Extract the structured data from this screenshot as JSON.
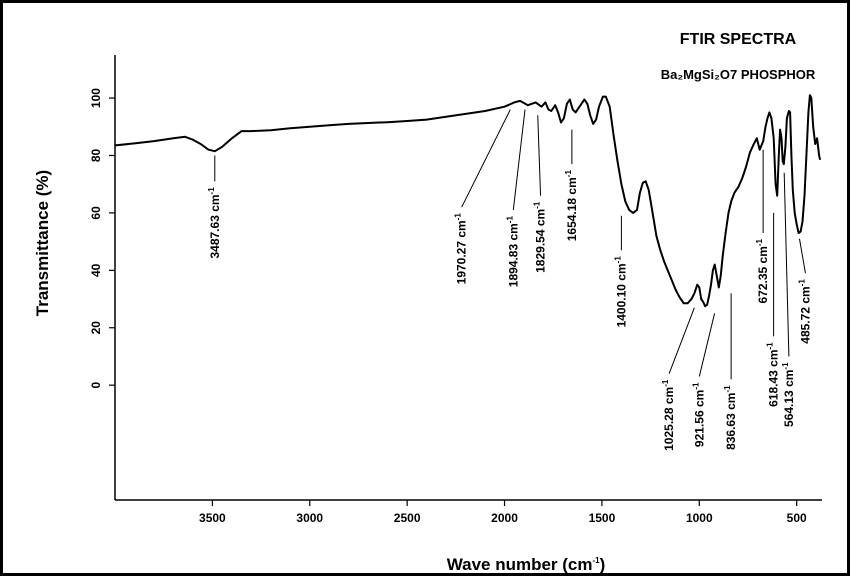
{
  "chart_data": {
    "type": "line",
    "title": "FTIR SPECTRA",
    "subtitle": "Ba₂MgSi₂O7 PHOSPHOR",
    "xlabel": "Wave number (cm",
    "xlabel_sup": "-1",
    "xlabel_end": ")",
    "ylabel": "Transmittance (%)",
    "xlim": [
      4000,
      370
    ],
    "ylim": [
      -40,
      115
    ],
    "x_ticks": [
      {
        "value": 3500,
        "label": "3500"
      },
      {
        "value": 3000,
        "label": "3000"
      },
      {
        "value": 2500,
        "label": "2500"
      },
      {
        "value": 2000,
        "label": "2000"
      },
      {
        "value": 1500,
        "label": "1500"
      },
      {
        "value": 1000,
        "label": "1000"
      },
      {
        "value": 500,
        "label": "500"
      }
    ],
    "y_ticks": [
      {
        "value": 0,
        "label": "0"
      },
      {
        "value": 20,
        "label": "20"
      },
      {
        "value": 40,
        "label": "40"
      },
      {
        "value": 60,
        "label": "60"
      },
      {
        "value": 80,
        "label": "80"
      },
      {
        "value": 100,
        "label": "100"
      }
    ],
    "series": [
      {
        "color": "#000000",
        "points": [
          [
            4000,
            83.5
          ],
          [
            3900,
            84.2
          ],
          [
            3800,
            85
          ],
          [
            3700,
            86
          ],
          [
            3640,
            86.5
          ],
          [
            3600,
            85.5
          ],
          [
            3560,
            84
          ],
          [
            3520,
            82
          ],
          [
            3487,
            81.5
          ],
          [
            3450,
            83
          ],
          [
            3400,
            86
          ],
          [
            3350,
            88.5
          ],
          [
            3300,
            88.5
          ],
          [
            3200,
            88.8
          ],
          [
            3100,
            89.5
          ],
          [
            3000,
            90
          ],
          [
            2900,
            90.5
          ],
          [
            2800,
            91
          ],
          [
            2700,
            91.3
          ],
          [
            2600,
            91.6
          ],
          [
            2500,
            92
          ],
          [
            2400,
            92.5
          ],
          [
            2300,
            93.5
          ],
          [
            2200,
            94.5
          ],
          [
            2100,
            95.5
          ],
          [
            2000,
            97
          ],
          [
            1950,
            98.5
          ],
          [
            1920,
            99
          ],
          [
            1880,
            97.5
          ],
          [
            1840,
            98.5
          ],
          [
            1810,
            97
          ],
          [
            1790,
            98.5
          ],
          [
            1775,
            96
          ],
          [
            1760,
            95.5
          ],
          [
            1740,
            97.5
          ],
          [
            1725,
            95
          ],
          [
            1710,
            91.5
          ],
          [
            1695,
            93
          ],
          [
            1680,
            98
          ],
          [
            1665,
            99.5
          ],
          [
            1650,
            96
          ],
          [
            1635,
            95
          ],
          [
            1610,
            97.5
          ],
          [
            1590,
            99.5
          ],
          [
            1575,
            98
          ],
          [
            1560,
            94
          ],
          [
            1545,
            91
          ],
          [
            1530,
            92.5
          ],
          [
            1515,
            97
          ],
          [
            1495,
            100.5
          ],
          [
            1480,
            100.5
          ],
          [
            1460,
            97
          ],
          [
            1440,
            87
          ],
          [
            1420,
            78
          ],
          [
            1400,
            70
          ],
          [
            1380,
            64
          ],
          [
            1360,
            61
          ],
          [
            1340,
            60
          ],
          [
            1320,
            61
          ],
          [
            1305,
            67
          ],
          [
            1290,
            70.5
          ],
          [
            1275,
            71
          ],
          [
            1260,
            68
          ],
          [
            1240,
            60
          ],
          [
            1220,
            52
          ],
          [
            1200,
            47
          ],
          [
            1180,
            43
          ],
          [
            1150,
            38
          ],
          [
            1120,
            33
          ],
          [
            1100,
            30.5
          ],
          [
            1080,
            28.5
          ],
          [
            1060,
            28.5
          ],
          [
            1040,
            30
          ],
          [
            1025,
            32
          ],
          [
            1010,
            35
          ],
          [
            1000,
            34
          ],
          [
            990,
            30
          ],
          [
            980,
            29
          ],
          [
            970,
            27.5
          ],
          [
            960,
            28
          ],
          [
            950,
            31
          ],
          [
            940,
            35
          ],
          [
            930,
            40
          ],
          [
            921,
            42
          ],
          [
            910,
            38
          ],
          [
            900,
            34
          ],
          [
            890,
            38
          ],
          [
            880,
            45
          ],
          [
            865,
            53
          ],
          [
            850,
            60
          ],
          [
            836,
            64
          ],
          [
            820,
            67
          ],
          [
            800,
            69
          ],
          [
            780,
            72
          ],
          [
            760,
            76
          ],
          [
            740,
            81
          ],
          [
            720,
            84
          ],
          [
            705,
            86
          ],
          [
            690,
            82
          ],
          [
            672,
            85
          ],
          [
            660,
            90
          ],
          [
            650,
            93
          ],
          [
            640,
            95
          ],
          [
            630,
            93
          ],
          [
            618,
            86
          ],
          [
            608,
            70
          ],
          [
            600,
            66
          ],
          [
            592,
            80
          ],
          [
            585,
            89
          ],
          [
            578,
            86
          ],
          [
            572,
            78
          ],
          [
            566,
            77
          ],
          [
            558,
            83
          ],
          [
            550,
            93
          ],
          [
            540,
            95.5
          ],
          [
            534,
            95
          ],
          [
            527,
            80
          ],
          [
            520,
            68
          ],
          [
            510,
            60
          ],
          [
            500,
            56
          ],
          [
            490,
            53
          ],
          [
            480,
            53.5
          ],
          [
            470,
            57
          ],
          [
            460,
            66
          ],
          [
            450,
            80
          ],
          [
            440,
            95
          ],
          [
            432,
            101
          ],
          [
            425,
            100
          ],
          [
            415,
            90
          ],
          [
            405,
            84
          ],
          [
            395,
            86
          ],
          [
            385,
            80
          ],
          [
            380,
            78.5
          ]
        ]
      }
    ],
    "annotations": [
      {
        "x": 3487.63,
        "y_from": 80,
        "y_to": 71,
        "label": "3487.63",
        "unit": "cm",
        "sup": "-1"
      },
      {
        "x": 1970.27,
        "y_from": 96,
        "y_to": 63,
        "label_x": 2220,
        "label_y": 62,
        "label": "1970.27",
        "unit": "cm",
        "sup": "-1"
      },
      {
        "x": 1894.83,
        "y_from": 96,
        "y_to": 62,
        "label_x": 1955,
        "label_y": 61,
        "label": "1894.83",
        "unit": "cm",
        "sup": "-1"
      },
      {
        "x": 1829.54,
        "y_from": 94,
        "y_to": 67,
        "label_x": 1815,
        "label_y": 66,
        "label": "1829.54",
        "unit": "cm",
        "sup": "-1"
      },
      {
        "x": 1654.18,
        "y_from": 89,
        "y_to": 77,
        "label": "1654.18",
        "unit": "cm",
        "sup": "-1"
      },
      {
        "x": 1400.1,
        "y_from": 59,
        "y_to": 47,
        "label": "1400.10",
        "unit": "cm",
        "sup": "-1"
      },
      {
        "x": 1025.28,
        "y_from": 27,
        "y_to": 6,
        "label_x": 1155,
        "label_y": 4,
        "label": "1025.28",
        "unit": "cm",
        "sup": "-1"
      },
      {
        "x": 921.56,
        "y_from": 25,
        "y_to": 4,
        "label_x": 1000,
        "label_y": 3,
        "label": "921.56",
        "unit": "cm",
        "sup": "-1"
      },
      {
        "x": 836.63,
        "y_from": 32,
        "y_to": 2,
        "label": "836.63",
        "unit": "cm",
        "sup": "-1"
      },
      {
        "x": 672.35,
        "y_from": 82,
        "y_to": 53,
        "label": "672.35",
        "unit": "cm",
        "sup": "-1"
      },
      {
        "x": 618.43,
        "y_from": 60,
        "y_to": 17,
        "label": "618.43",
        "unit": "cm",
        "sup": "-1"
      },
      {
        "x": 564.13,
        "y_from": 74,
        "y_to": 11,
        "label_x": 540,
        "label_y": 10,
        "label": "564.13",
        "unit": "cm",
        "sup": "-1"
      },
      {
        "x": 485.72,
        "y_from": 51,
        "y_to": 40,
        "label_x": 455,
        "label_y": 39,
        "label": "485.72",
        "unit": "cm",
        "sup": "-1"
      }
    ]
  }
}
